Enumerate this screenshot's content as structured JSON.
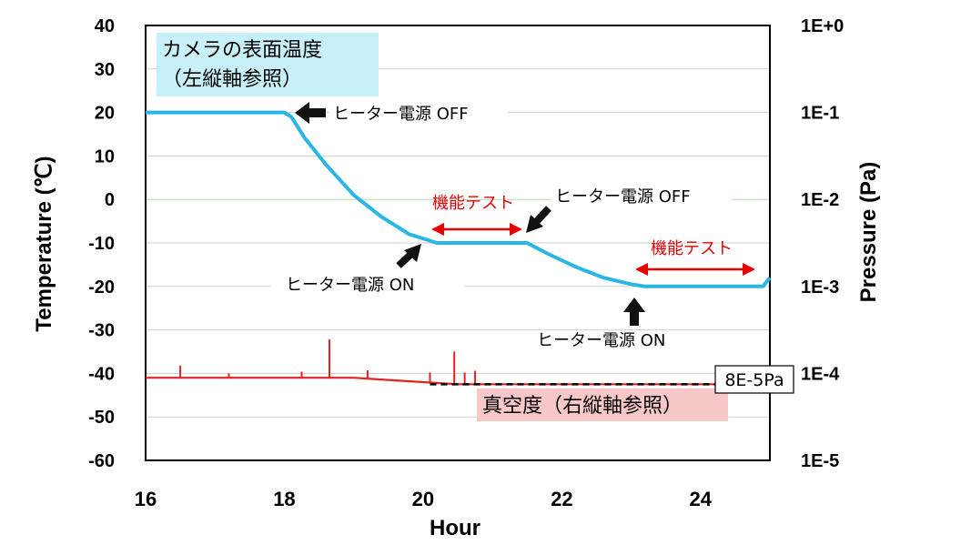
{
  "chart_data": {
    "type": "line",
    "xlabel": "Hour",
    "ylabel": "Temperature (℃)",
    "y2label": "Pressure (Pa)",
    "xlim": [
      16,
      25
    ],
    "ylim": [
      -60,
      40
    ],
    "x_ticks": [
      "16",
      "18",
      "20",
      "22",
      "24"
    ],
    "y_ticks": [
      "40",
      "30",
      "20",
      "10",
      "0",
      "-10",
      "-20",
      "-30",
      "-40",
      "-50",
      "-60"
    ],
    "y2_ticks": [
      "1E+0",
      "1E-1",
      "1E-2",
      "1E-3",
      "1E-4",
      "1E-5"
    ],
    "y2_scale": "log",
    "grid": true,
    "series": [
      {
        "name": "カメラの表面温度（左縦軸参照）",
        "axis": "left",
        "color": "#29b6e6",
        "x": [
          16.0,
          16.5,
          17.0,
          17.5,
          18.0,
          18.1,
          18.3,
          18.6,
          19.0,
          19.4,
          19.8,
          20.2,
          20.6,
          21.0,
          21.4,
          21.5,
          21.8,
          22.2,
          22.6,
          23.0,
          23.2,
          23.6,
          24.0,
          24.5,
          24.9,
          25.0
        ],
        "y": [
          20,
          20,
          20,
          20,
          20,
          19,
          14,
          8,
          1,
          -4,
          -8,
          -10,
          -10,
          -10,
          -10,
          -10,
          -12.5,
          -15.5,
          -18,
          -19.5,
          -20,
          -20,
          -20,
          -20,
          -20,
          -18
        ]
      },
      {
        "name": "真空度（右縦軸参照）",
        "axis": "right",
        "color": "#e82020",
        "x": [
          16.0,
          17.0,
          18.0,
          18.5,
          19.0,
          19.5,
          20.0,
          20.5,
          21.0,
          22.0,
          23.0,
          24.0,
          25.0
        ],
        "y": [
          -41,
          -41,
          -41,
          -41,
          -41,
          -41.5,
          -42,
          -42.5,
          -42.5,
          -42.5,
          -42.5,
          -42.5,
          -42.5
        ],
        "spikes": [
          {
            "x": 16.5,
            "y": -38.2
          },
          {
            "x": 17.2,
            "y": -40.0
          },
          {
            "x": 18.25,
            "y": -39.6
          },
          {
            "x": 18.65,
            "y": -32.2
          },
          {
            "x": 19.2,
            "y": -39.3
          },
          {
            "x": 20.1,
            "y": -39.8
          },
          {
            "x": 20.45,
            "y": -35.0
          },
          {
            "x": 20.6,
            "y": -39.8
          },
          {
            "x": 20.75,
            "y": -39.4
          }
        ]
      }
    ],
    "reference_line": {
      "label": "8E-5Pa",
      "y": -42.5,
      "x_start": 20.1,
      "x_end": 24.5
    }
  },
  "annotations": {
    "heater_off_1": "ヒーター電源 OFF",
    "heater_off_2": "ヒーター電源 OFF",
    "heater_on_1": "ヒーター電源 ON",
    "heater_on_2": "ヒーター電源 ON",
    "func_test_1": "機能テスト",
    "func_test_2": "機能テスト",
    "camera_label_line1": "カメラの表面温度",
    "camera_label_line2": "（左縦軸参照）",
    "vacuum_label": "真空度（右縦軸参照）",
    "ref_label": "8E-5Pa"
  },
  "colors": {
    "temperature": "#29b6e6",
    "pressure": "#e82020",
    "red_text": "#e60000",
    "camera_label_bg": "#c8f0f8",
    "vacuum_label_bg": "#f8c8c8"
  }
}
